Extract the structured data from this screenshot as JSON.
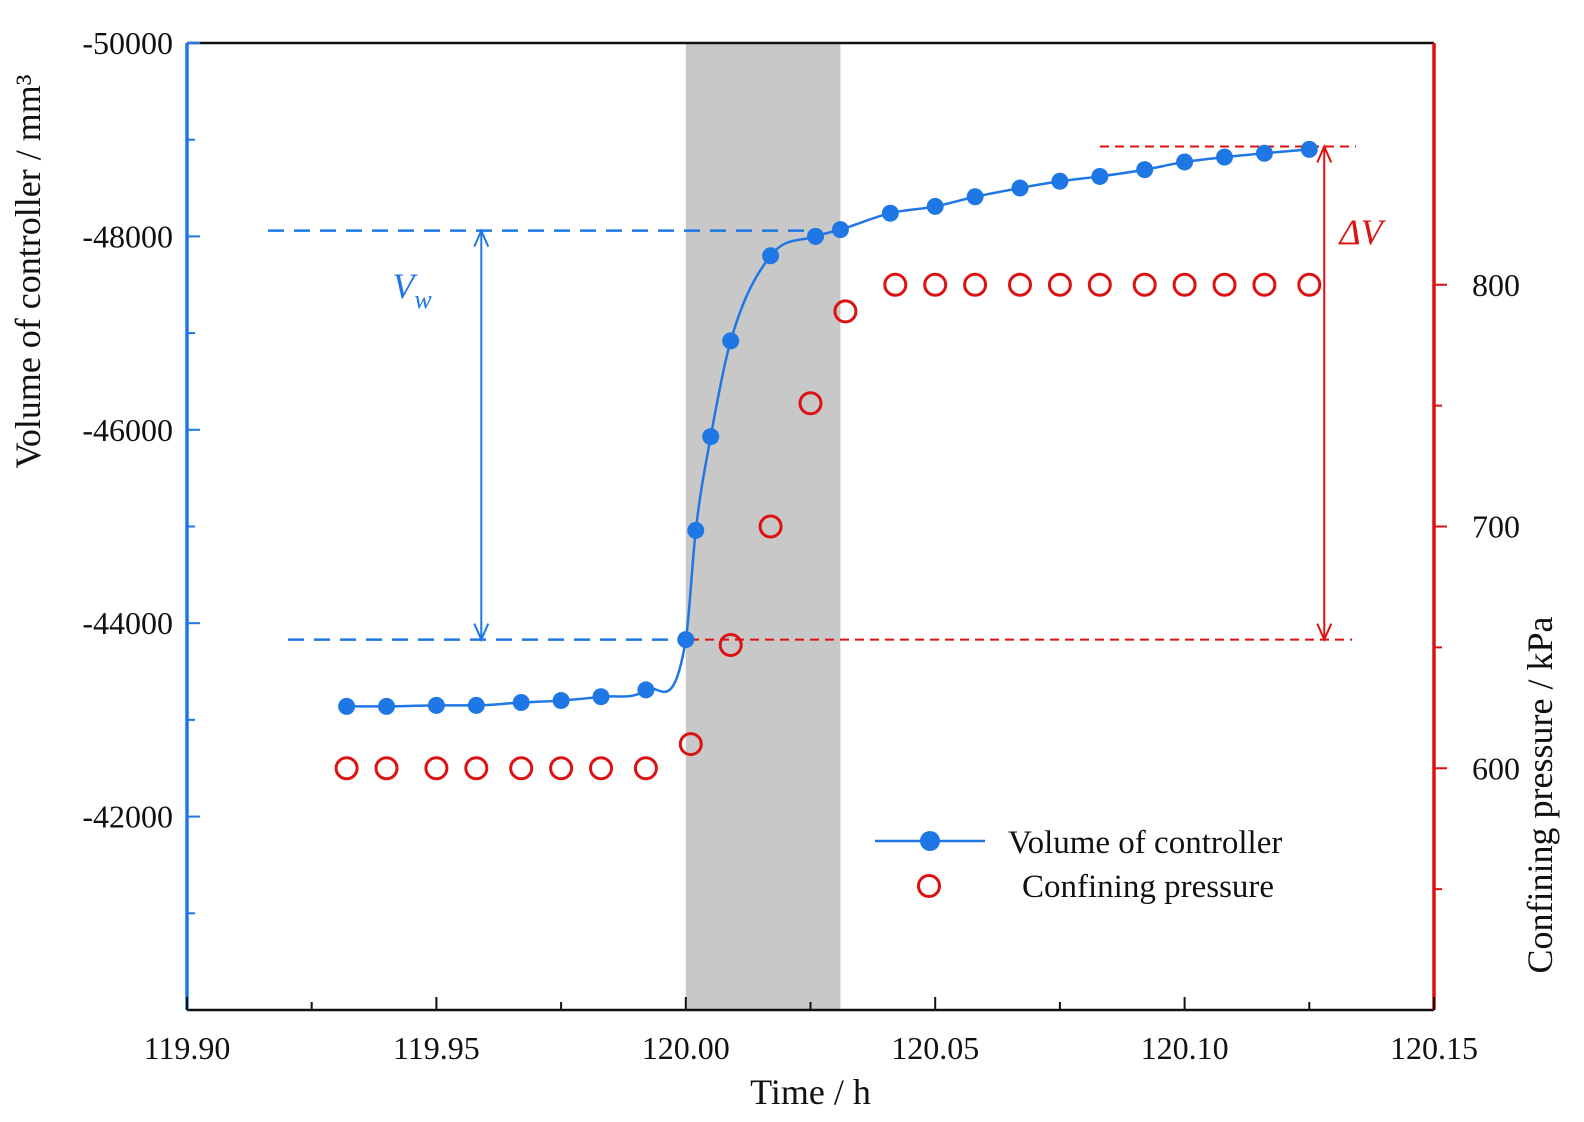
{
  "chart_data": {
    "type": "scatter",
    "x": [
      119.932,
      119.94,
      119.95,
      119.958,
      119.967,
      119.975,
      119.983,
      119.992,
      120.0,
      120.002,
      120.005,
      120.009,
      120.017,
      120.026,
      120.031,
      120.041,
      120.05,
      120.058,
      120.067,
      120.075,
      120.083,
      120.092,
      120.1,
      120.108,
      120.116,
      120.125
    ],
    "series": [
      {
        "name": "Volume of controller",
        "axis": "left",
        "marker": "filled-circle",
        "line": true,
        "color": "#1f77e6",
        "x": [
          119.932,
          119.94,
          119.95,
          119.958,
          119.967,
          119.975,
          119.983,
          119.992,
          120.0,
          120.002,
          120.005,
          120.009,
          120.017,
          120.026,
          120.031,
          120.041,
          120.05,
          120.058,
          120.067,
          120.075,
          120.083,
          120.092,
          120.1,
          120.108,
          120.116,
          120.125
        ],
        "values": [
          -43140,
          -43140,
          -43150,
          -43150,
          -43180,
          -43200,
          -43240,
          -43310,
          -43830,
          -44960,
          -45930,
          -46920,
          -47800,
          -48000,
          -48070,
          -48240,
          -48310,
          -48410,
          -48500,
          -48570,
          -48620,
          -48690,
          -48770,
          -48820,
          -48860,
          -48900
        ]
      },
      {
        "name": "Confining pressure",
        "axis": "right",
        "marker": "open-circle",
        "line": false,
        "color": "#dd1111",
        "x": [
          119.932,
          119.94,
          119.95,
          119.958,
          119.967,
          119.975,
          119.983,
          119.992,
          120.001,
          120.009,
          120.017,
          120.025,
          120.032,
          120.042,
          120.05,
          120.058,
          120.067,
          120.075,
          120.083,
          120.092,
          120.1,
          120.108,
          120.116,
          120.125
        ],
        "values": [
          600,
          600,
          600,
          600,
          600,
          600,
          600,
          600,
          610,
          651,
          700,
          751,
          789,
          800,
          800,
          800,
          800,
          800,
          800,
          800,
          800,
          800,
          800,
          800
        ]
      }
    ],
    "xlabel": "Time / h",
    "ylabel_left": "Volume of controller / mm³",
    "ylabel_right": "Confining pressure / kPa",
    "xlim": [
      119.9,
      120.15
    ],
    "ylim_left": [
      -40000,
      -50000
    ],
    "ylim_right": [
      500,
      900
    ],
    "xticks": [
      "119.90",
      "119.95",
      "120.00",
      "120.05",
      "120.10",
      "120.15"
    ],
    "yticks_left": [
      "-42000",
      "-44000",
      "-46000",
      "-48000",
      "-50000"
    ],
    "yticks_right": [
      "600",
      "700",
      "800"
    ],
    "shaded_region": {
      "x_from": 120.0,
      "x_to": 120.031,
      "color": "#c8c8c8"
    },
    "annotations": {
      "vw": {
        "label_main": "V",
        "label_sub": "w",
        "from": -43830,
        "to": -48060,
        "x_arrow": 119.959,
        "color": "#1f77e6"
      },
      "dv": {
        "label": "ΔV",
        "from": -43830,
        "to": -48930,
        "x_arrow": 120.128,
        "color": "#dd1111"
      }
    },
    "legend": {
      "position": "lower-right",
      "items": [
        "Volume of controller",
        "Confining pressure"
      ]
    },
    "colors": {
      "left_axis": "#1f77e6",
      "right_axis": "#dd1111",
      "frame": "#111111"
    }
  }
}
